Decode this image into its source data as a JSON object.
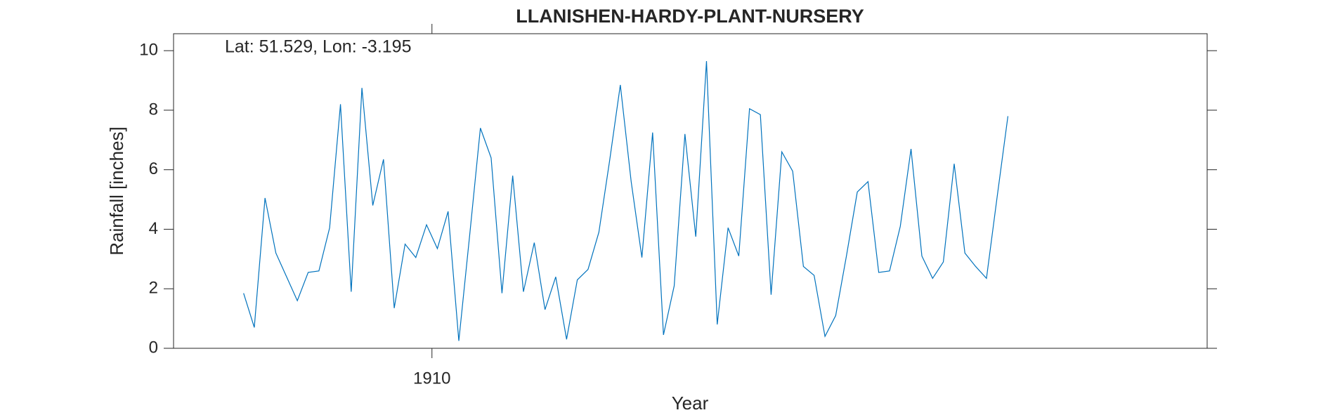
{
  "chart_data": {
    "type": "line",
    "title": "LLANISHEN-HARDY-PLANT-NURSERY",
    "annotation": "Lat: 51.529, Lon: -3.195",
    "x_label": "Year",
    "y_label": "Rainfall [inches]",
    "x": [
      1908.542,
      1908.625,
      1908.708,
      1908.792,
      1908.875,
      1908.958,
      1909.042,
      1909.125,
      1909.208,
      1909.292,
      1909.375,
      1909.458,
      1909.542,
      1909.625,
      1909.708,
      1909.792,
      1909.875,
      1909.958,
      1910.042,
      1910.125,
      1910.208,
      1910.292,
      1910.375,
      1910.458,
      1910.542,
      1910.625,
      1910.708,
      1910.792,
      1910.875,
      1910.958,
      1911.042,
      1911.125,
      1911.208,
      1911.292,
      1911.375,
      1911.458,
      1911.542,
      1911.625,
      1911.708,
      1911.792,
      1911.875,
      1911.958,
      1912.042,
      1912.125,
      1912.208,
      1912.292,
      1912.375,
      1912.458,
      1912.542,
      1912.625,
      1912.708,
      1912.792,
      1912.875,
      1912.958,
      1913.042,
      1913.125,
      1913.208,
      1913.292,
      1913.375,
      1913.458,
      1913.542,
      1913.625,
      1913.708,
      1913.792,
      1913.875,
      1913.958,
      1914.042,
      1914.125,
      1914.208,
      1914.292,
      1914.375,
      1914.458
    ],
    "series": [
      {
        "name": "Rainfall",
        "color": "#0072bd",
        "values": [
          1.85,
          0.7,
          5.05,
          3.2,
          2.4,
          1.6,
          2.55,
          2.6,
          4.05,
          8.2,
          1.9,
          8.75,
          4.8,
          6.35,
          1.35,
          3.5,
          3.05,
          4.15,
          3.35,
          4.6,
          0.25,
          3.8,
          7.4,
          6.4,
          1.85,
          5.8,
          1.9,
          3.55,
          1.3,
          2.4,
          0.3,
          2.3,
          2.65,
          3.9,
          6.3,
          8.85,
          5.6,
          3.05,
          7.25,
          0.45,
          2.1,
          7.2,
          3.75,
          9.65,
          0.8,
          4.05,
          3.1,
          8.05,
          7.85,
          1.8,
          6.6,
          5.95,
          2.75,
          2.45,
          0.4,
          1.1,
          3.1,
          5.25,
          5.6,
          2.55,
          2.6,
          4.1,
          6.7,
          3.1,
          2.35,
          2.9,
          6.2,
          3.2,
          2.75,
          2.35,
          5.1,
          7.8
        ]
      }
    ],
    "xlim": [
      1908,
      1916
    ],
    "xticks": [
      1910
    ],
    "ylim": [
      0,
      10.57
    ],
    "yticks": [
      0,
      2,
      4,
      6,
      8,
      10
    ]
  }
}
